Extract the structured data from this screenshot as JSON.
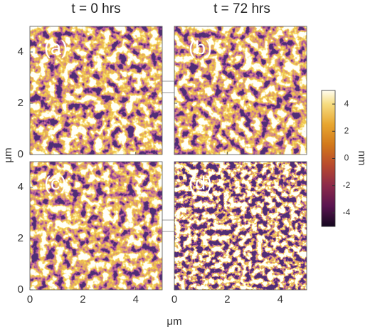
{
  "figure": {
    "column_titles": [
      "t = 0 hrs",
      "t = 72 hrs"
    ],
    "panels": [
      {
        "label": "(a)"
      },
      {
        "label": "(b)"
      },
      {
        "label": "(c)"
      },
      {
        "label": "(d)"
      }
    ],
    "x_label": "μm",
    "y_label": "μm",
    "xlim": [
      0,
      5
    ],
    "xticks": [
      0,
      2,
      4
    ],
    "ylim": [
      0,
      5
    ],
    "yticks": [
      0,
      2,
      4
    ],
    "colorbar": {
      "label": "nm",
      "lim": [
        -5,
        5
      ],
      "ticks": [
        4,
        2,
        0,
        -2,
        -4
      ]
    }
  }
}
